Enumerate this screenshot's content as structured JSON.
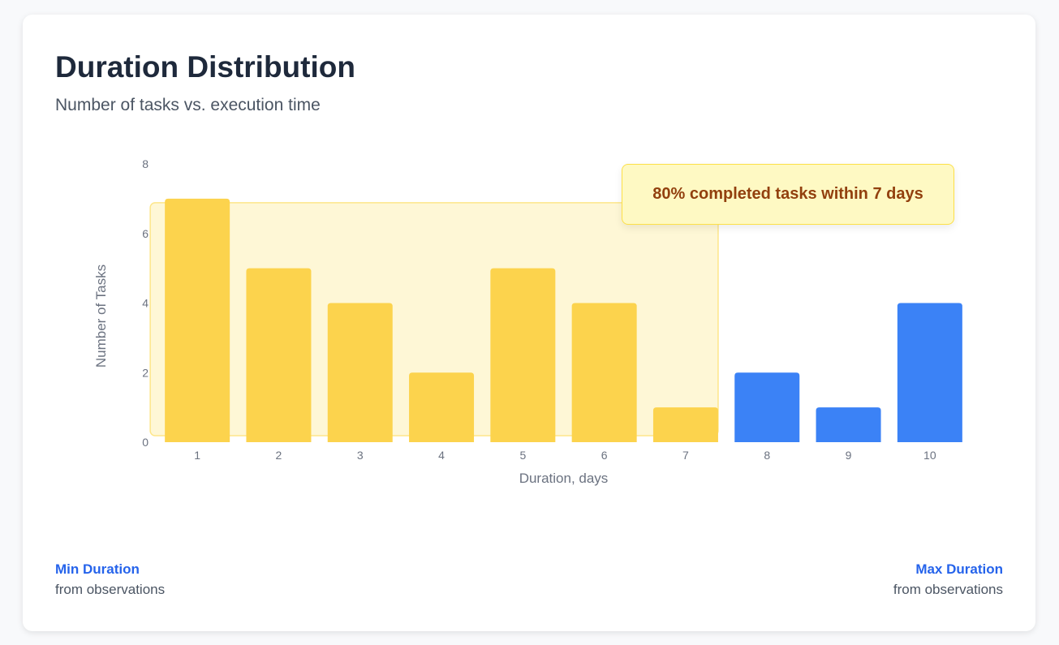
{
  "header": {
    "title": "Duration Distribution",
    "subtitle": "Number of tasks vs. execution time"
  },
  "callout": {
    "text": "80% completed tasks within 7 days"
  },
  "footer": {
    "min_label": "Min Duration",
    "min_sub": "from observations",
    "max_label": "Max Duration",
    "max_sub": "from observations"
  },
  "colors": {
    "highlight_bar": "#fcd34d",
    "normal_bar": "#3b82f6",
    "highlight_region": "#fef7d6",
    "highlight_border": "#fde68a"
  },
  "chart_data": {
    "type": "bar",
    "categories": [
      "1",
      "2",
      "3",
      "4",
      "5",
      "6",
      "7",
      "8",
      "9",
      "10"
    ],
    "values": [
      7,
      5,
      4,
      2,
      5,
      4,
      1,
      2,
      1,
      4
    ],
    "highlighted": [
      true,
      true,
      true,
      true,
      true,
      true,
      true,
      false,
      false,
      false
    ],
    "xlabel": "Duration, days",
    "ylabel": "Number of Tasks",
    "ylim": [
      0,
      8
    ],
    "yticks": [
      0,
      2,
      4,
      6,
      8
    ],
    "grid": false,
    "highlight_range": [
      "1",
      "7"
    ]
  }
}
